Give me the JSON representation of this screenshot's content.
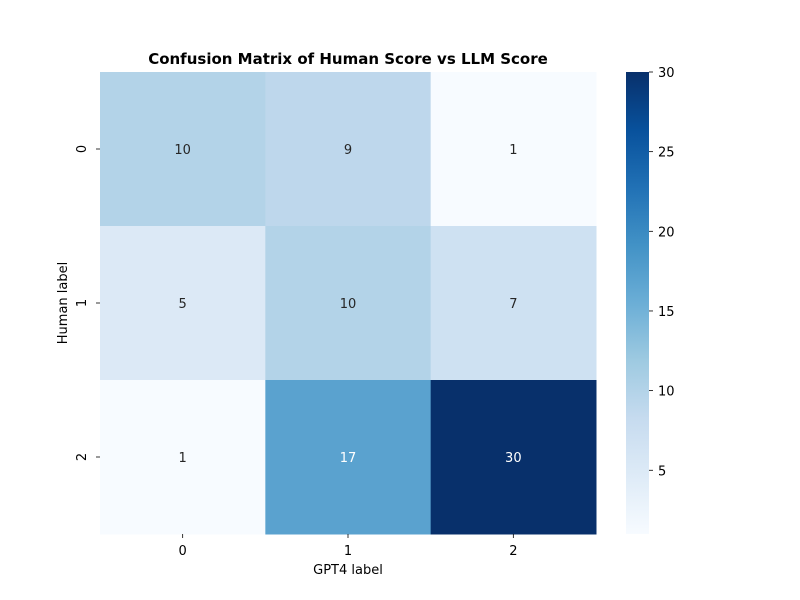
{
  "chart_data": {
    "type": "heatmap",
    "title": "Confusion Matrix of Human Score vs LLM Score",
    "xlabel": "GPT4 label",
    "ylabel": "Human label",
    "x_categories": [
      "0",
      "1",
      "2"
    ],
    "y_categories": [
      "0",
      "1",
      "2"
    ],
    "values": [
      [
        10,
        9,
        1
      ],
      [
        5,
        10,
        7
      ],
      [
        1,
        17,
        30
      ]
    ],
    "colorbar": {
      "min": 1,
      "max": 30,
      "ticks": [
        "5",
        "10",
        "15",
        "20",
        "25",
        "30"
      ],
      "colormap": "Blues"
    },
    "annotations": true
  },
  "colors": {
    "low": "#f7fbff",
    "high": "#08306b"
  }
}
